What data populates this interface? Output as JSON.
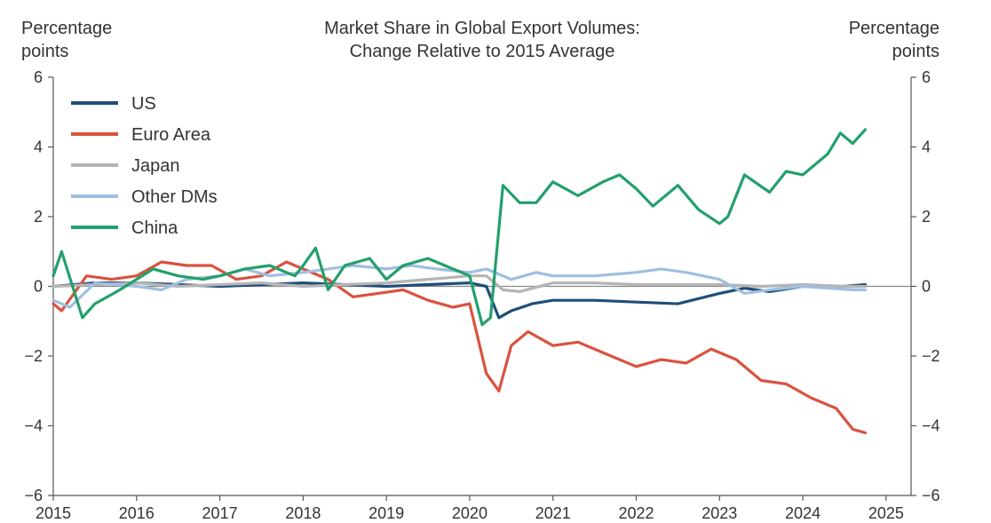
{
  "chart_data": {
    "type": "line",
    "title_lines": [
      "Market Share in Global Export Volumes:",
      "Change Relative to 2015 Average"
    ],
    "left_unit_lines": [
      "Percentage",
      "points"
    ],
    "right_unit_lines": [
      "Percentage",
      "points"
    ],
    "ylim": [
      -6,
      6
    ],
    "yticks": [
      -6,
      -4,
      -2,
      0,
      2,
      4,
      6
    ],
    "xlim": [
      2015,
      2025.3
    ],
    "xticks": [
      2015,
      2016,
      2017,
      2018,
      2019,
      2020,
      2021,
      2022,
      2023,
      2024,
      2025
    ],
    "grid": false,
    "zero_line": true,
    "legend_position": "top-left",
    "series": [
      {
        "name": "US",
        "color": "#1f4e79",
        "x": [
          2015.0,
          2015.5,
          2016.0,
          2016.5,
          2017.0,
          2017.5,
          2018.0,
          2018.5,
          2019.0,
          2019.5,
          2020.0,
          2020.2,
          2020.35,
          2020.5,
          2020.75,
          2021.0,
          2021.5,
          2022.0,
          2022.5,
          2023.0,
          2023.3,
          2023.6,
          2024.0,
          2024.5,
          2024.75
        ],
        "y": [
          0.0,
          0.1,
          0.1,
          0.05,
          0.0,
          0.05,
          0.1,
          0.05,
          0.0,
          0.05,
          0.1,
          0.0,
          -0.9,
          -0.7,
          -0.5,
          -0.4,
          -0.4,
          -0.45,
          -0.5,
          -0.2,
          -0.05,
          -0.15,
          0.0,
          0.0,
          0.05
        ]
      },
      {
        "name": "Euro Area",
        "color": "#d9533f",
        "x": [
          2015.0,
          2015.1,
          2015.4,
          2015.7,
          2016.0,
          2016.3,
          2016.6,
          2016.9,
          2017.2,
          2017.5,
          2017.8,
          2018.0,
          2018.3,
          2018.6,
          2018.9,
          2019.2,
          2019.5,
          2019.8,
          2020.0,
          2020.2,
          2020.35,
          2020.5,
          2020.7,
          2021.0,
          2021.3,
          2021.6,
          2022.0,
          2022.3,
          2022.6,
          2022.9,
          2023.2,
          2023.5,
          2023.8,
          2024.1,
          2024.4,
          2024.6,
          2024.75
        ],
        "y": [
          -0.5,
          -0.7,
          0.3,
          0.2,
          0.3,
          0.7,
          0.6,
          0.6,
          0.2,
          0.3,
          0.7,
          0.5,
          0.2,
          -0.3,
          -0.2,
          -0.1,
          -0.4,
          -0.6,
          -0.5,
          -2.5,
          -3.0,
          -1.7,
          -1.3,
          -1.7,
          -1.6,
          -1.9,
          -2.3,
          -2.1,
          -2.2,
          -1.8,
          -2.1,
          -2.7,
          -2.8,
          -3.2,
          -3.5,
          -4.1,
          -4.2
        ]
      },
      {
        "name": "Japan",
        "color": "#b5b5b5",
        "x": [
          2015.0,
          2015.5,
          2016.0,
          2016.5,
          2017.0,
          2017.5,
          2018.0,
          2018.5,
          2019.0,
          2019.5,
          2020.0,
          2020.2,
          2020.4,
          2020.6,
          2021.0,
          2021.5,
          2022.0,
          2022.5,
          2023.0,
          2023.5,
          2024.0,
          2024.5,
          2024.75
        ],
        "y": [
          0.0,
          0.05,
          0.1,
          0.0,
          0.05,
          0.1,
          0.0,
          0.05,
          0.1,
          0.2,
          0.3,
          0.3,
          -0.1,
          -0.15,
          0.1,
          0.1,
          0.05,
          0.05,
          0.05,
          0.0,
          0.05,
          0.0,
          0.0
        ]
      },
      {
        "name": "Other DMs",
        "color": "#9fbfe0",
        "x": [
          2015.0,
          2015.2,
          2015.5,
          2016.0,
          2016.3,
          2016.6,
          2017.0,
          2017.3,
          2017.6,
          2018.0,
          2018.3,
          2018.6,
          2019.0,
          2019.3,
          2019.6,
          2020.0,
          2020.2,
          2020.5,
          2020.8,
          2021.0,
          2021.5,
          2022.0,
          2022.3,
          2022.6,
          2023.0,
          2023.3,
          2023.6,
          2024.0,
          2024.3,
          2024.6,
          2024.75
        ],
        "y": [
          -0.4,
          -0.6,
          0.1,
          0.0,
          -0.1,
          0.2,
          0.3,
          0.5,
          0.3,
          0.4,
          0.5,
          0.6,
          0.5,
          0.6,
          0.5,
          0.4,
          0.5,
          0.2,
          0.4,
          0.3,
          0.3,
          0.4,
          0.5,
          0.4,
          0.2,
          -0.2,
          -0.1,
          0.0,
          -0.05,
          -0.1,
          -0.1
        ]
      },
      {
        "name": "China",
        "color": "#23a06b",
        "x": [
          2015.0,
          2015.1,
          2015.35,
          2015.5,
          2015.8,
          2016.0,
          2016.2,
          2016.5,
          2016.8,
          2017.0,
          2017.3,
          2017.6,
          2017.9,
          2018.0,
          2018.15,
          2018.3,
          2018.5,
          2018.8,
          2019.0,
          2019.2,
          2019.5,
          2019.8,
          2020.0,
          2020.15,
          2020.25,
          2020.4,
          2020.6,
          2020.8,
          2021.0,
          2021.3,
          2021.6,
          2021.8,
          2022.0,
          2022.2,
          2022.5,
          2022.75,
          2023.0,
          2023.1,
          2023.3,
          2023.6,
          2023.8,
          2024.0,
          2024.3,
          2024.45,
          2024.6,
          2024.75
        ],
        "y": [
          0.3,
          1.0,
          -0.9,
          -0.5,
          -0.1,
          0.2,
          0.5,
          0.3,
          0.2,
          0.3,
          0.5,
          0.6,
          0.3,
          0.6,
          1.1,
          -0.1,
          0.6,
          0.8,
          0.2,
          0.6,
          0.8,
          0.5,
          0.3,
          -1.1,
          -0.9,
          2.9,
          2.4,
          2.4,
          3.0,
          2.6,
          3.0,
          3.2,
          2.8,
          2.3,
          2.9,
          2.2,
          1.8,
          2.0,
          3.2,
          2.7,
          3.3,
          3.2,
          3.8,
          4.4,
          4.1,
          4.5
        ]
      }
    ]
  }
}
